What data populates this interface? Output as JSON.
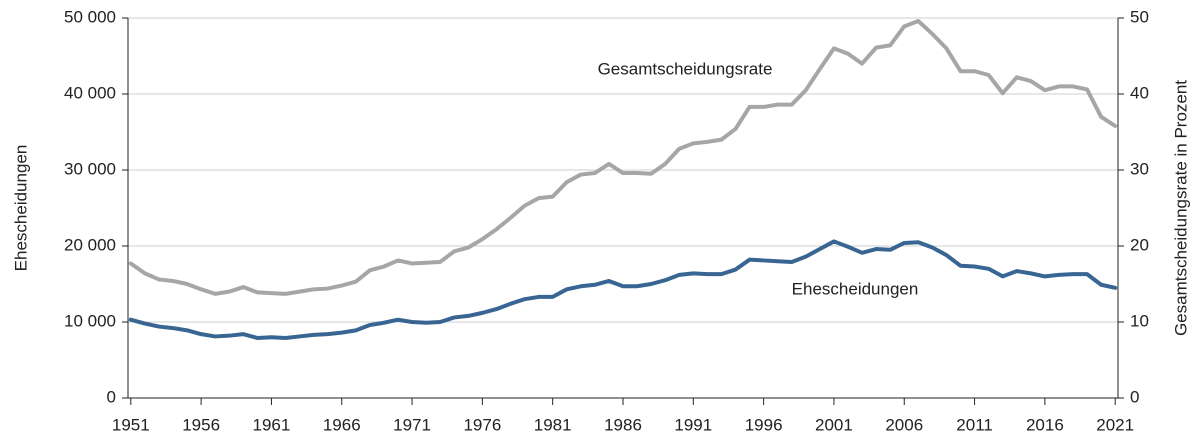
{
  "chart_data": {
    "type": "line",
    "y_label": "Ehescheidungen",
    "y2_label": "Gesamtscheidungsrate in Prozent",
    "x": [
      1951,
      1952,
      1953,
      1954,
      1955,
      1956,
      1957,
      1958,
      1959,
      1960,
      1961,
      1962,
      1963,
      1964,
      1965,
      1966,
      1967,
      1968,
      1969,
      1970,
      1971,
      1972,
      1973,
      1974,
      1975,
      1976,
      1977,
      1978,
      1979,
      1980,
      1981,
      1982,
      1983,
      1984,
      1985,
      1986,
      1987,
      1988,
      1989,
      1990,
      1991,
      1992,
      1993,
      1994,
      1995,
      1996,
      1997,
      1998,
      1999,
      2000,
      2001,
      2002,
      2003,
      2004,
      2005,
      2006,
      2007,
      2008,
      2009,
      2010,
      2011,
      2012,
      2013,
      2014,
      2015,
      2016,
      2017,
      2018,
      2019,
      2020,
      2021
    ],
    "xlim": [
      1950.8,
      2021.2
    ],
    "xticks": [
      1951,
      1956,
      1961,
      1966,
      1971,
      1976,
      1981,
      1986,
      1991,
      1996,
      2001,
      2006,
      2011,
      2016,
      2021
    ],
    "ylim": [
      0,
      50000
    ],
    "yticks": [
      0,
      {
        "value": 10000,
        "label": "10 000"
      },
      {
        "value": 20000,
        "label": "20 000"
      },
      {
        "value": 30000,
        "label": "30 000"
      },
      {
        "value": 40000,
        "label": "40 000"
      },
      {
        "value": 50000,
        "label": "50 000"
      }
    ],
    "y2lim": [
      0,
      50
    ],
    "y2ticks": [
      0,
      10,
      20,
      30,
      40,
      50
    ],
    "grid": true,
    "series": [
      {
        "name": "Gesamtscheidungsrate",
        "color": "#a6a6a6",
        "axis": "y2",
        "values": [
          17.7,
          16.4,
          15.6,
          15.4,
          15.0,
          14.3,
          13.7,
          14.0,
          14.6,
          13.9,
          13.8,
          13.7,
          14.0,
          14.3,
          14.4,
          14.8,
          15.3,
          16.8,
          17.3,
          18.1,
          17.7,
          17.8,
          17.9,
          19.3,
          19.8,
          20.9,
          22.2,
          23.7,
          25.3,
          26.3,
          26.5,
          28.4,
          29.4,
          29.6,
          30.8,
          29.6,
          29.6,
          29.5,
          30.8,
          32.8,
          33.5,
          33.7,
          34.0,
          35.4,
          38.3,
          38.3,
          38.6,
          38.6,
          40.5,
          43.3,
          46.0,
          45.3,
          44.0,
          46.1,
          46.4,
          48.9,
          49.6,
          47.9,
          46.0,
          43.0,
          43.0,
          42.5,
          40.1,
          42.2,
          41.7,
          40.5,
          41.0,
          41.0,
          40.6,
          37.0,
          35.8
        ]
      },
      {
        "name": "Ehescheidungen",
        "color": "#386592",
        "values": [
          10300,
          9800,
          9400,
          9200,
          8900,
          8400,
          8100,
          8200,
          8400,
          7900,
          8000,
          7900,
          8100,
          8300,
          8400,
          8600,
          8900,
          9600,
          9900,
          10300,
          10000,
          9900,
          10000,
          10600,
          10800,
          11200,
          11700,
          12400,
          13000,
          13300,
          13300,
          14300,
          14700,
          14900,
          15400,
          14700,
          14700,
          15000,
          15500,
          16200,
          16400,
          16300,
          16300,
          16900,
          18200,
          18100,
          18000,
          17900,
          18600,
          19600,
          20600,
          19900,
          19100,
          19600,
          19500,
          20400,
          20500,
          19800,
          18800,
          17400,
          17300,
          17000,
          16000,
          16700,
          16400,
          16000,
          16200,
          16300,
          16300,
          14900,
          14500
        ]
      }
    ]
  }
}
